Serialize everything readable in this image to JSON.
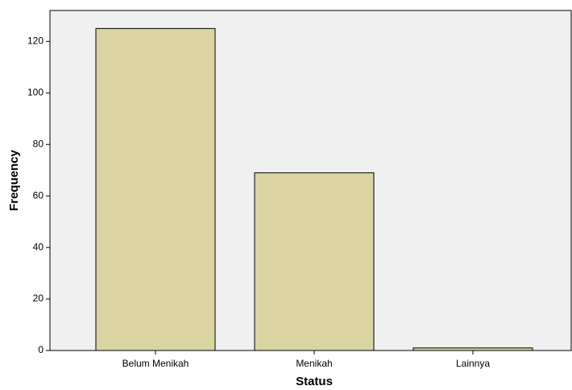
{
  "chart_data": {
    "type": "bar",
    "x_label": "Status",
    "y_label": "Frequency",
    "categories": [
      "Belum Menikah",
      "Menikah",
      "Lainnya"
    ],
    "values": [
      125,
      69,
      1
    ],
    "color": "#d9d4a2",
    "ylim": [
      0,
      132
    ],
    "yticks": [
      0,
      20,
      40,
      60,
      80,
      100,
      120
    ]
  }
}
